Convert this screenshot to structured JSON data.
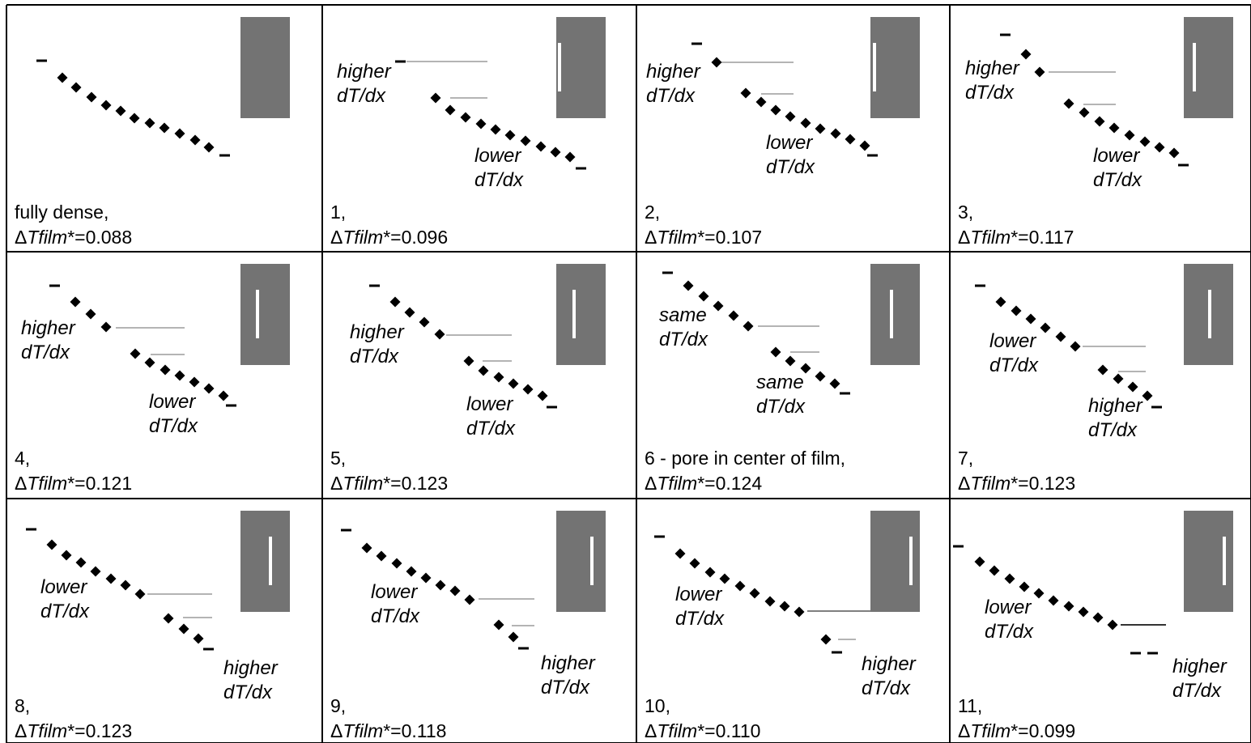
{
  "panels": [
    {
      "caption": "fully dense,",
      "dt_value": "=0.088",
      "annotation_upper": {
        "line1": "",
        "line2": ""
      },
      "annotation_lower": {
        "line1": "",
        "line2": ""
      }
    },
    {
      "caption": "1,",
      "dt_value": "=0.096",
      "annotation_upper": {
        "line1": "higher",
        "line2": "dT/dx"
      },
      "annotation_lower": {
        "line1": "lower",
        "line2": "dT/dx"
      }
    },
    {
      "caption": "2,",
      "dt_value": "=0.107",
      "annotation_upper": {
        "line1": "higher",
        "line2": "dT/dx"
      },
      "annotation_lower": {
        "line1": "lower",
        "line2": "dT/dx"
      }
    },
    {
      "caption": "3,",
      "dt_value": "=0.117",
      "annotation_upper": {
        "line1": "higher",
        "line2": "dT/dx"
      },
      "annotation_lower": {
        "line1": "lower",
        "line2": "dT/dx"
      }
    },
    {
      "caption": "4,",
      "dt_value": "=0.121",
      "annotation_upper": {
        "line1": "higher",
        "line2": "dT/dx"
      },
      "annotation_lower": {
        "line1": "lower",
        "line2": "dT/dx"
      }
    },
    {
      "caption": "5,",
      "dt_value": "=0.123",
      "annotation_upper": {
        "line1": "higher",
        "line2": "dT/dx"
      },
      "annotation_lower": {
        "line1": "lower",
        "line2": "dT/dx"
      }
    },
    {
      "caption": "6 - pore in center of  film,",
      "dt_value": "=0.124",
      "annotation_upper": {
        "line1": "same",
        "line2": "dT/dx"
      },
      "annotation_lower": {
        "line1": "same",
        "line2": "dT/dx"
      }
    },
    {
      "caption": "7,",
      "dt_value": "=0.123",
      "annotation_upper": {
        "line1": "lower",
        "line2": "dT/dx"
      },
      "annotation_lower": {
        "line1": "higher",
        "line2": "dT/dx"
      }
    },
    {
      "caption": "8,",
      "dt_value": "=0.123",
      "annotation_upper": {
        "line1": "lower",
        "line2": "dT/dx"
      },
      "annotation_lower": {
        "line1": "higher",
        "line2": "dT/dx"
      }
    },
    {
      "caption": "9,",
      "dt_value": "=0.118",
      "annotation_upper": {
        "line1": "lower",
        "line2": "dT/dx"
      },
      "annotation_lower": {
        "line1": "higher",
        "line2": "dT/dx"
      }
    },
    {
      "caption": "10,",
      "dt_value": "=0.110",
      "annotation_upper": {
        "line1": "lower",
        "line2": "dT/dx"
      },
      "annotation_lower": {
        "line1": "higher",
        "line2": "dT/dx"
      }
    },
    {
      "caption": "11,",
      "dt_value": "=0.099",
      "annotation_upper": {
        "line1": "lower",
        "line2": "dT/dx"
      },
      "annotation_lower": {
        "line1": "higher",
        "line2": "dT/dx"
      }
    }
  ],
  "symbols": {
    "delta": "Δ",
    "t_film": "Tfilm",
    "star": "*"
  },
  "colors": {
    "film": "#737373",
    "pore": "#ffffff",
    "grid": "#000000",
    "marker": "#000000",
    "guide": "#888888"
  }
}
